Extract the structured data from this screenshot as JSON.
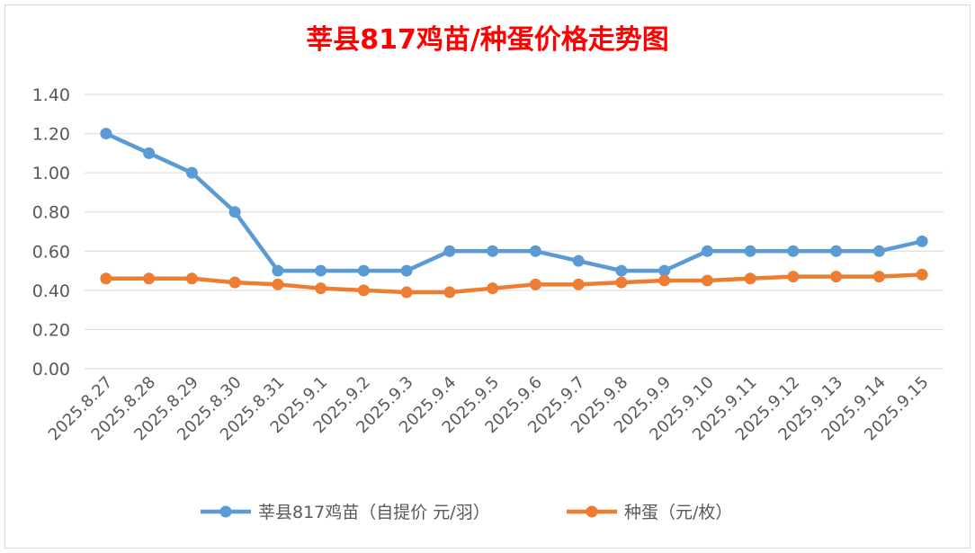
{
  "chart_data": {
    "type": "line",
    "title": "莘县817鸡苗/种蛋价格走势图",
    "categories": [
      "2025.8.27",
      "2025.8.28",
      "2025.8.29",
      "2025.8.30",
      "2025.8.31",
      "2025.9.1",
      "2025.9.2",
      "2025.9.3",
      "2025.9.4",
      "2025.9.5",
      "2025.9.6",
      "2025.9.7",
      "2025.9.8",
      "2025.9.9",
      "2025.9.10",
      "2025.9.11",
      "2025.9.12",
      "2025.9.13",
      "2025.9.14",
      "2025.9.15"
    ],
    "series": [
      {
        "name": "莘县817鸡苗（自提价 元/羽）",
        "color": "#5b9bd5",
        "values": [
          1.2,
          1.1,
          1.0,
          0.8,
          0.5,
          0.5,
          0.5,
          0.5,
          0.6,
          0.6,
          0.6,
          0.55,
          0.5,
          0.5,
          0.6,
          0.6,
          0.6,
          0.6,
          0.6,
          0.65
        ]
      },
      {
        "name": "种蛋（元/枚）",
        "color": "#ed7d31",
        "values": [
          0.46,
          0.46,
          0.46,
          0.44,
          0.43,
          0.41,
          0.4,
          0.39,
          0.39,
          0.41,
          0.43,
          0.43,
          0.44,
          0.45,
          0.45,
          0.46,
          0.47,
          0.47,
          0.47,
          0.48
        ]
      }
    ],
    "yticks": [
      "0.00",
      "0.20",
      "0.40",
      "0.60",
      "0.80",
      "1.00",
      "1.20",
      "1.40"
    ],
    "ylim": [
      0,
      1.4
    ],
    "grid": true,
    "legend_position": "bottom"
  }
}
